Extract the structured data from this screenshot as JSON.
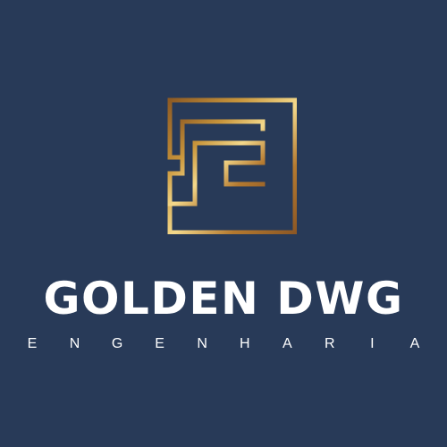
{
  "logo": {
    "icon": "golden-square-g-monogram",
    "gradient_colors": [
      "#8e5b24",
      "#c9963c",
      "#f4d98b",
      "#b57a30",
      "#8d5825"
    ]
  },
  "brand": {
    "name": "GOLDEN DWG",
    "tagline": "ENGENHARIA"
  },
  "colors": {
    "background": "#283a58",
    "text": "#ffffff"
  }
}
